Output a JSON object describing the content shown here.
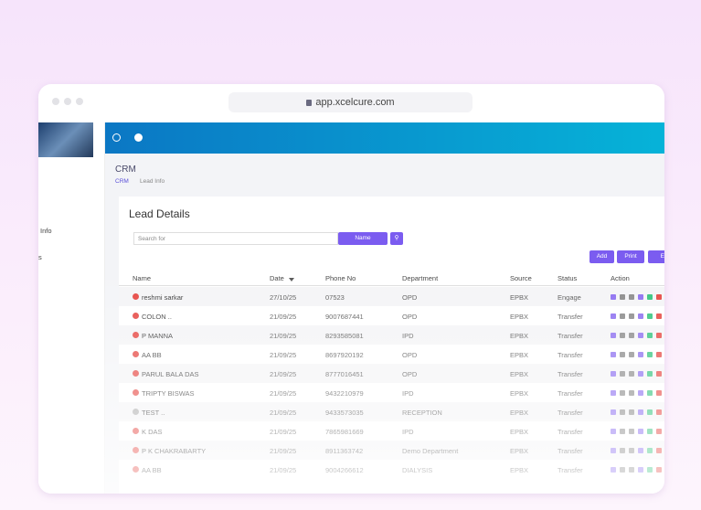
{
  "browser": {
    "url": "app.xcelcure.com"
  },
  "sidebar": {
    "items": [
      "Info",
      "s"
    ]
  },
  "page": {
    "title": "CRM",
    "breadcrumb": [
      "CRM",
      "Lead Info"
    ]
  },
  "card": {
    "title": "Lead Details",
    "search_placeholder": "Search for",
    "search_field": "Name",
    "buttons": [
      "Add",
      "Print",
      "E"
    ]
  },
  "table": {
    "headers": [
      "Name",
      "Date",
      "Phone No",
      "Department",
      "Source",
      "Status",
      "Action"
    ],
    "rows": [
      [
        "reshmi sarkar",
        "27/10/25",
        "07523",
        "OPD",
        "EPBX",
        "Engage"
      ],
      [
        "COLON ..",
        "21/09/25",
        "9007687441",
        "OPD",
        "EPBX",
        "Transfer"
      ],
      [
        "P MANNA",
        "21/09/25",
        "8293585081",
        "IPD",
        "EPBX",
        "Transfer"
      ],
      [
        "AA BB",
        "21/09/25",
        "8697920192",
        "OPD",
        "EPBX",
        "Transfer"
      ],
      [
        "PARUL BALA DAS",
        "21/09/25",
        "8777016451",
        "OPD",
        "EPBX",
        "Transfer"
      ],
      [
        "TRIPTY BISWAS",
        "21/09/25",
        "9432210979",
        "IPD",
        "EPBX",
        "Transfer"
      ],
      [
        "TEST ..",
        "21/09/25",
        "9433573035",
        "RECEPTION",
        "EPBX",
        "Transfer"
      ],
      [
        "K DAS",
        "21/09/25",
        "7865981669",
        "IPD",
        "EPBX",
        "Transfer"
      ],
      [
        "P K CHAKRABARTY",
        "21/09/25",
        "8911363742",
        "Demo Department",
        "EPBX",
        "Transfer"
      ],
      [
        "AA BB",
        "21/09/25",
        "9004266612",
        "DIALYSIS",
        "EPBX",
        "Transfer"
      ]
    ]
  }
}
